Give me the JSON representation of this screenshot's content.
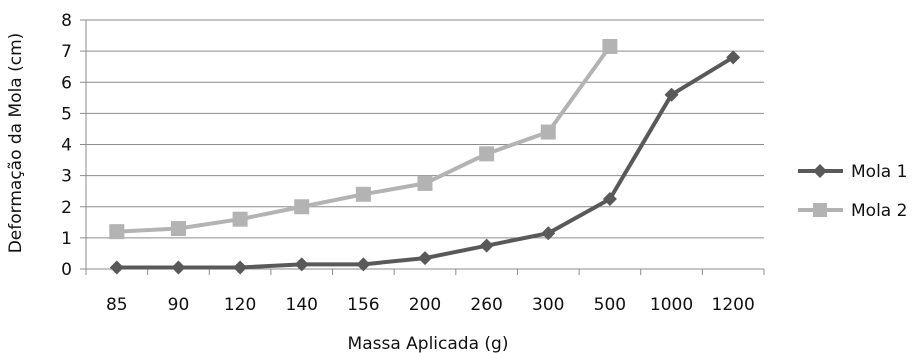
{
  "chart_data": {
    "type": "line",
    "title": "",
    "xlabel": "Massa Aplicada (g)",
    "ylabel": "Deformação da Mola (cm)",
    "categories": [
      "85",
      "90",
      "120",
      "140",
      "156",
      "200",
      "260",
      "300",
      "500",
      "1000",
      "1200"
    ],
    "ylim": [
      0,
      8
    ],
    "yticks": [
      0,
      1,
      2,
      3,
      4,
      5,
      6,
      7,
      8
    ],
    "grid": true,
    "legend_position": "right",
    "series": [
      {
        "name": "Mola 1",
        "color": "#595959",
        "marker": "diamond",
        "values": [
          0.05,
          0.05,
          0.05,
          0.15,
          0.15,
          0.35,
          0.75,
          1.15,
          2.25,
          5.6,
          6.8
        ]
      },
      {
        "name": "Mola 2",
        "color": "#b3b3b3",
        "marker": "square",
        "values": [
          1.2,
          1.3,
          1.6,
          2.0,
          2.4,
          2.75,
          3.7,
          4.4,
          7.15,
          null,
          null
        ]
      }
    ]
  }
}
